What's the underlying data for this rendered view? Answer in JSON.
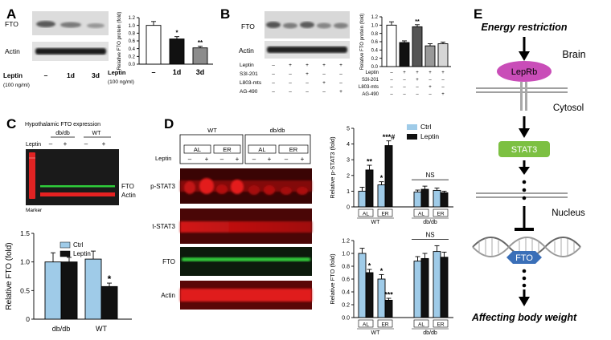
{
  "panel_letters": [
    "A",
    "B",
    "C",
    "D",
    "E"
  ],
  "panel_a": {
    "blot_labels": [
      "FTO",
      "Actin"
    ],
    "treatment_label": "Leptin",
    "treatment_dose": "(100 ng/ml)",
    "lanes": [
      "–",
      "1d",
      "3d"
    ]
  },
  "panel_b": {
    "blot_labels": [
      "FTO",
      "Actin"
    ],
    "row_labels": [
      "Leptin",
      "S3I-201",
      "L803-mts",
      "AG-490"
    ],
    "blot_matrix": [
      [
        "–",
        "+",
        "+",
        "+",
        "+"
      ],
      [
        "–",
        "–",
        "+",
        "–",
        "–"
      ],
      [
        "–",
        "–",
        "–",
        "+",
        "–"
      ],
      [
        "–",
        "–",
        "–",
        "–",
        "+"
      ]
    ]
  },
  "panel_c": {
    "title": "Hypothalamic FTO expression",
    "groups": [
      "db/db",
      "WT"
    ],
    "leptin_label": "Leptin",
    "lane_signs": [
      "–",
      "+",
      "–",
      "+"
    ],
    "band_labels": [
      "FTO",
      "Actin"
    ],
    "marker_label": "Marker"
  },
  "panel_d": {
    "group_labels": [
      "WT",
      "db/db"
    ],
    "diet_labels": [
      "AL",
      "ER",
      "AL",
      "ER"
    ],
    "leptin_label": "Leptin",
    "lane_signs": [
      "–",
      "+",
      "–",
      "+",
      "–",
      "+",
      "–",
      "+"
    ],
    "blot_labels": [
      "p-STAT3",
      "t-STAT3",
      "FTO",
      "Actin"
    ],
    "ns_label": "NS"
  },
  "panel_e": {
    "top": "Energy restriction",
    "brain": "Brain",
    "receptor": "LepRb",
    "cytosol": "Cytosol",
    "stat": "STAT3",
    "nucleus": "Nucleus",
    "gene": "FTO",
    "bottom": "Affecting body weight"
  },
  "chart_data": [
    {
      "id": "A",
      "type": "bar",
      "ylabel": "Relative FTO protein (fold)",
      "ylim": [
        0,
        1.2
      ],
      "yticks": [
        "0.0",
        "0.2",
        "0.4",
        "0.6",
        "0.8",
        "1.0",
        "1.2"
      ],
      "categories": [
        "–",
        "1d",
        "3d"
      ],
      "category_row_label": "Leptin",
      "category_row_sublabel": "(100 ng/ml)",
      "values": [
        1.0,
        0.65,
        0.42
      ],
      "errors": [
        0.1,
        0.06,
        0.04
      ],
      "colors": [
        "#ffffff",
        "#111111",
        "#8c8c8c"
      ],
      "annotations": [
        "",
        "*",
        "**"
      ]
    },
    {
      "id": "B",
      "type": "bar",
      "ylabel": "Relative FTO protein (fold)",
      "ylim": [
        0,
        1.2
      ],
      "yticks": [
        "0.0",
        "0.2",
        "0.4",
        "0.6",
        "0.8",
        "1.0",
        "1.2"
      ],
      "row_labels": [
        "Leptin",
        "S3I-201",
        "L803-mts",
        "AG-490"
      ],
      "matrix": [
        [
          "–",
          "+",
          "+",
          "+",
          "+"
        ],
        [
          "–",
          "–",
          "+",
          "–",
          "–"
        ],
        [
          "–",
          "–",
          "–",
          "+",
          "–"
        ],
        [
          "–",
          "–",
          "–",
          "–",
          "+"
        ]
      ],
      "values": [
        1.0,
        0.58,
        0.96,
        0.5,
        0.55
      ],
      "errors": [
        0.08,
        0.04,
        0.05,
        0.05,
        0.04
      ],
      "colors": [
        "#ffffff",
        "#111111",
        "#555555",
        "#999999",
        "#d6d6d6"
      ],
      "annotations": [
        "",
        "",
        "**",
        "",
        ""
      ]
    },
    {
      "id": "C",
      "type": "bar",
      "ylabel": "Relative FTO (fold)",
      "ylim": [
        0,
        1.5
      ],
      "yticks": [
        "0",
        "0.5",
        "1.0",
        "1.5"
      ],
      "categories": [
        "db/db",
        "WT"
      ],
      "series": [
        {
          "name": "Ctrl",
          "color": "#9fcbe8",
          "values": [
            1.0,
            1.05
          ],
          "errors": [
            0.16,
            0.14
          ]
        },
        {
          "name": "Leptin",
          "color": "#111111",
          "values": [
            1.0,
            0.57
          ],
          "errors": [
            0.08,
            0.06
          ]
        }
      ],
      "annotations": [
        [
          "",
          ""
        ],
        [
          "",
          "*"
        ]
      ]
    },
    {
      "id": "D-top",
      "type": "bar",
      "ylabel": "Relative p-STAT3 (fold)",
      "ylim": [
        0,
        5
      ],
      "yticks": [
        "0",
        "1",
        "2",
        "3",
        "4",
        "5"
      ],
      "categories": [
        "AL",
        "ER",
        "AL",
        "ER"
      ],
      "groups": [
        "WT",
        "db/db"
      ],
      "series": [
        {
          "name": "Ctrl",
          "color": "#9fcbe8",
          "values": [
            1.0,
            1.4,
            0.95,
            1.05
          ],
          "errors": [
            0.25,
            0.2,
            0.12,
            0.15
          ]
        },
        {
          "name": "Leptin",
          "color": "#111111",
          "values": [
            2.35,
            3.9,
            1.12,
            0.9
          ],
          "errors": [
            0.3,
            0.3,
            0.2,
            0.1
          ]
        }
      ],
      "annotations": [
        [
          "",
          "**"
        ],
        [
          "*",
          "***#"
        ],
        [
          "",
          ""
        ],
        [
          "",
          ""
        ]
      ],
      "bracket_label": "NS",
      "legend": "top-right"
    },
    {
      "id": "D-bottom",
      "type": "bar",
      "ylabel": "Relative FTO (fold)",
      "ylim": [
        0,
        1.2
      ],
      "yticks": [
        "0.0",
        "0.2",
        "0.4",
        "0.6",
        "0.8",
        "1.0",
        "1.2"
      ],
      "categories": [
        "AL",
        "ER",
        "AL",
        "ER"
      ],
      "groups": [
        "WT",
        "db/db"
      ],
      "series": [
        {
          "name": "Ctrl",
          "color": "#9fcbe8",
          "values": [
            1.0,
            0.6,
            0.88,
            1.03
          ],
          "errors": [
            0.08,
            0.07,
            0.07,
            0.09
          ]
        },
        {
          "name": "Leptin",
          "color": "#111111",
          "values": [
            0.7,
            0.27,
            0.92,
            0.94
          ],
          "errors": [
            0.05,
            0.03,
            0.08,
            0.08
          ]
        }
      ],
      "annotations": [
        [
          "",
          "*"
        ],
        [
          "*",
          "***"
        ],
        [
          "",
          ""
        ],
        [
          "",
          ""
        ]
      ],
      "bracket_label": "NS"
    }
  ]
}
